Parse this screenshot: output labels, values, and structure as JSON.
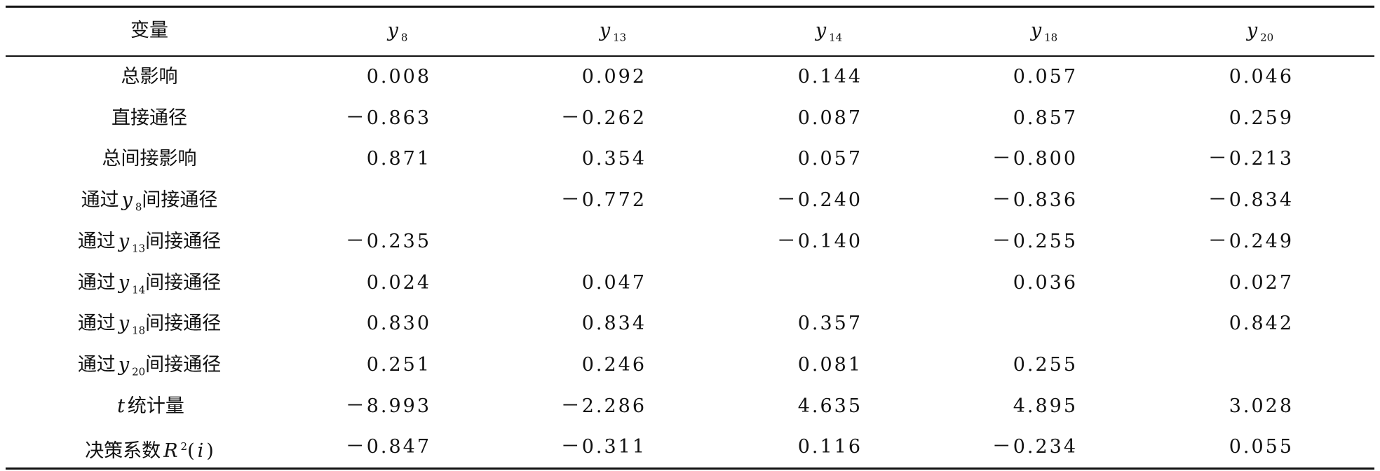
{
  "table": {
    "header": [
      [
        {
          "text": "变量"
        }
      ],
      [
        {
          "text": "y",
          "italic": true
        },
        {
          "text": "8",
          "sub": true
        }
      ],
      [
        {
          "text": "y",
          "italic": true
        },
        {
          "text": "13",
          "sub": true
        }
      ],
      [
        {
          "text": "y",
          "italic": true
        },
        {
          "text": "14",
          "sub": true
        }
      ],
      [
        {
          "text": "y",
          "italic": true
        },
        {
          "text": "18",
          "sub": true
        }
      ],
      [
        {
          "text": "y",
          "italic": true
        },
        {
          "text": "20",
          "sub": true
        }
      ]
    ],
    "rows": [
      {
        "label": [
          {
            "text": "总影响"
          }
        ],
        "cells": [
          "0.008",
          "0.092",
          "0.144",
          "0.057",
          "0.046"
        ]
      },
      {
        "label": [
          {
            "text": "直接通径"
          }
        ],
        "cells": [
          "－0.863",
          "－0.262",
          "0.087",
          "0.857",
          "0.259"
        ]
      },
      {
        "label": [
          {
            "text": "总间接影响"
          }
        ],
        "cells": [
          "0.871",
          "0.354",
          "0.057",
          "－0.800",
          "－0.213"
        ]
      },
      {
        "label": [
          {
            "text": "通过"
          },
          {
            "text": "y",
            "italic": true
          },
          {
            "text": "8",
            "sub": true
          },
          {
            "text": "间接通径"
          }
        ],
        "cells": [
          null,
          "－0.772",
          "－0.240",
          "－0.836",
          "－0.834"
        ]
      },
      {
        "label": [
          {
            "text": "通过"
          },
          {
            "text": "y",
            "italic": true
          },
          {
            "text": "13",
            "sub": true
          },
          {
            "text": "间接通径"
          }
        ],
        "cells": [
          "－0.235",
          null,
          "－0.140",
          "－0.255",
          "－0.249"
        ]
      },
      {
        "label": [
          {
            "text": "通过"
          },
          {
            "text": "y",
            "italic": true
          },
          {
            "text": "14",
            "sub": true
          },
          {
            "text": "间接通径"
          }
        ],
        "cells": [
          "0.024",
          "0.047",
          null,
          "0.036",
          "0.027"
        ]
      },
      {
        "label": [
          {
            "text": "通过"
          },
          {
            "text": "y",
            "italic": true
          },
          {
            "text": "18",
            "sub": true
          },
          {
            "text": "间接通径"
          }
        ],
        "cells": [
          "0.830",
          "0.834",
          "0.357",
          null,
          "0.842"
        ]
      },
      {
        "label": [
          {
            "text": "通过"
          },
          {
            "text": "y",
            "italic": true
          },
          {
            "text": "20",
            "sub": true
          },
          {
            "text": "间接通径"
          }
        ],
        "cells": [
          "0.251",
          "0.246",
          "0.081",
          "0.255",
          null
        ]
      },
      {
        "label": [
          {
            "text": "t",
            "italic": true
          },
          {
            "text": "统计量"
          }
        ],
        "cells": [
          "－8.993",
          "－2.286",
          "4.635",
          "4.895",
          "3.028"
        ]
      },
      {
        "label": [
          {
            "text": "决策系数"
          },
          {
            "text": "R",
            "italic": true
          },
          {
            "text": "2",
            "sup": true
          },
          {
            "text": "("
          },
          {
            "text": "i",
            "italic": true
          },
          {
            "text": ")"
          }
        ],
        "cells": [
          "－0.847",
          "－0.311",
          "0.116",
          "－0.234",
          "0.055"
        ]
      }
    ]
  }
}
